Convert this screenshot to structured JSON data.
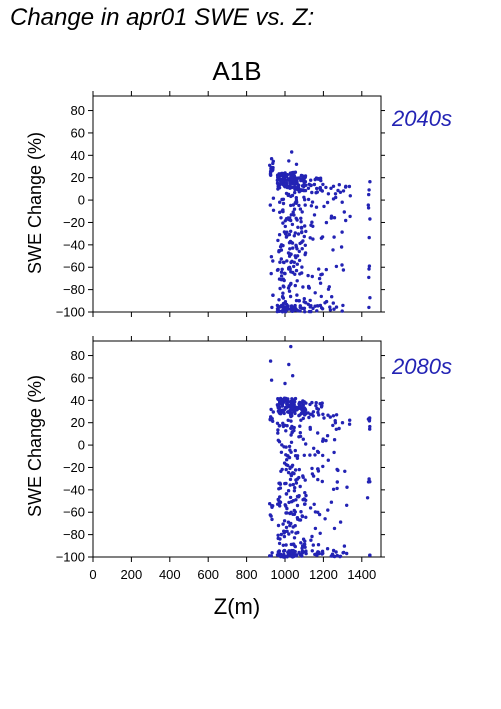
{
  "title": "Change in apr01 SWE vs. Z:",
  "scenario": "A1B",
  "colors": {
    "points": "#2323b4",
    "period_text": "#2323b4",
    "frame": "#000000"
  },
  "chart_data": [
    {
      "type": "scatter",
      "period": "2040s",
      "ylabel": "SWE Change (%)",
      "xlabel": "",
      "xlim": [
        0,
        1500
      ],
      "ylim": [
        -100,
        93
      ],
      "yticks": [
        -100,
        -80,
        -60,
        -40,
        -20,
        0,
        20,
        40,
        60,
        80
      ],
      "xticks": [
        0,
        200,
        400,
        600,
        800,
        1000,
        1200,
        1400
      ],
      "grid": false,
      "distribution": {
        "x_clusters": [
          {
            "range": [
              920,
              940
            ],
            "n": 22,
            "y": [
              -100,
              35
            ]
          },
          {
            "range": [
              960,
              1060
            ],
            "n": 260,
            "y": [
              -100,
              25
            ]
          },
          {
            "range": [
              1060,
              1110
            ],
            "n": 90,
            "y": [
              -100,
              22
            ]
          },
          {
            "range": [
              1120,
              1200
            ],
            "n": 60,
            "y": [
              -95,
              20
            ]
          },
          {
            "range": [
              1200,
              1340
            ],
            "n": 45,
            "y": [
              -100,
              15
            ]
          },
          {
            "range": [
              1430,
              1445
            ],
            "n": 12,
            "y": [
              -100,
              17
            ]
          }
        ],
        "outliers": [
          [
            1035,
            43
          ],
          [
            1020,
            35
          ],
          [
            1060,
            32
          ],
          [
            930,
            37
          ]
        ]
      }
    },
    {
      "type": "scatter",
      "period": "2080s",
      "ylabel": "SWE Change (%)",
      "xlabel": "Z(m)",
      "xlim": [
        0,
        1500
      ],
      "ylim": [
        -100,
        93
      ],
      "yticks": [
        -100,
        -80,
        -60,
        -40,
        -20,
        0,
        20,
        40,
        60,
        80
      ],
      "xticks": [
        0,
        200,
        400,
        600,
        800,
        1000,
        1200,
        1400
      ],
      "grid": false,
      "distribution": {
        "x_clusters": [
          {
            "range": [
              920,
              940
            ],
            "n": 18,
            "y": [
              -100,
              35
            ]
          },
          {
            "range": [
              960,
              1060
            ],
            "n": 280,
            "y": [
              -100,
              42
            ]
          },
          {
            "range": [
              1060,
              1110
            ],
            "n": 90,
            "y": [
              -100,
              40
            ]
          },
          {
            "range": [
              1120,
              1200
            ],
            "n": 60,
            "y": [
              -100,
              38
            ]
          },
          {
            "range": [
              1200,
              1340
            ],
            "n": 45,
            "y": [
              -100,
              28
            ]
          },
          {
            "range": [
              1430,
              1445
            ],
            "n": 12,
            "y": [
              -100,
              28
            ]
          }
        ],
        "outliers": [
          [
            1030,
            88
          ],
          [
            1020,
            72
          ],
          [
            925,
            75
          ],
          [
            1040,
            62
          ],
          [
            930,
            58
          ],
          [
            1000,
            55
          ]
        ]
      }
    }
  ]
}
